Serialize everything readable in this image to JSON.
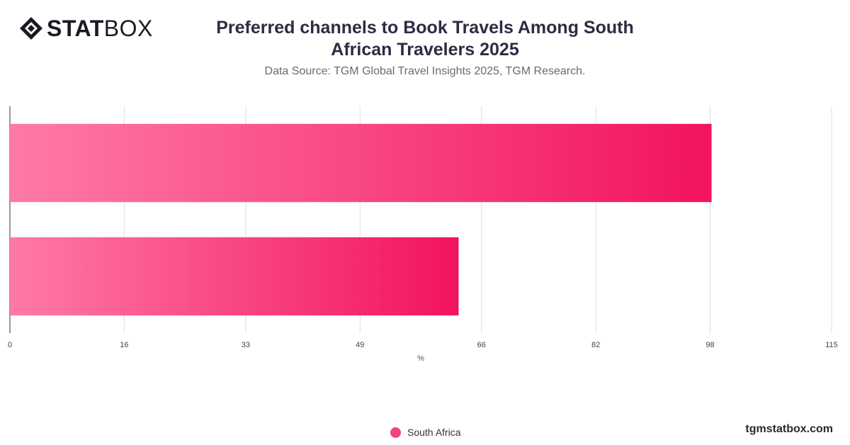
{
  "logo": {
    "bold_text": "STAT",
    "light_text": "BOX"
  },
  "header": {
    "title": "Preferred channels to Book Travels Among South African Travelers 2025",
    "subtitle": "Data Source: TGM Global Travel Insights 2025, TGM Research."
  },
  "chart_data": {
    "type": "bar",
    "orientation": "horizontal",
    "categories": [
      "",
      ""
    ],
    "series": [
      {
        "name": "South Africa",
        "values": [
          98.2,
          62.8
        ]
      }
    ],
    "xlabel": "%",
    "ylabel": "",
    "xlim": [
      0,
      115
    ],
    "x_ticks": [
      0,
      16,
      33,
      49,
      66,
      82,
      98,
      115
    ],
    "grid": true,
    "legend_position": "bottom-center",
    "colors": {
      "bar_start": "#ff7aa6",
      "bar_end": "#f2135f",
      "grid": "#dddddd",
      "axis": "#333333"
    }
  },
  "legend": {
    "label": "South Africa",
    "color": "#f0457f"
  },
  "footer": {
    "credit": "tgmstatbox.com"
  }
}
